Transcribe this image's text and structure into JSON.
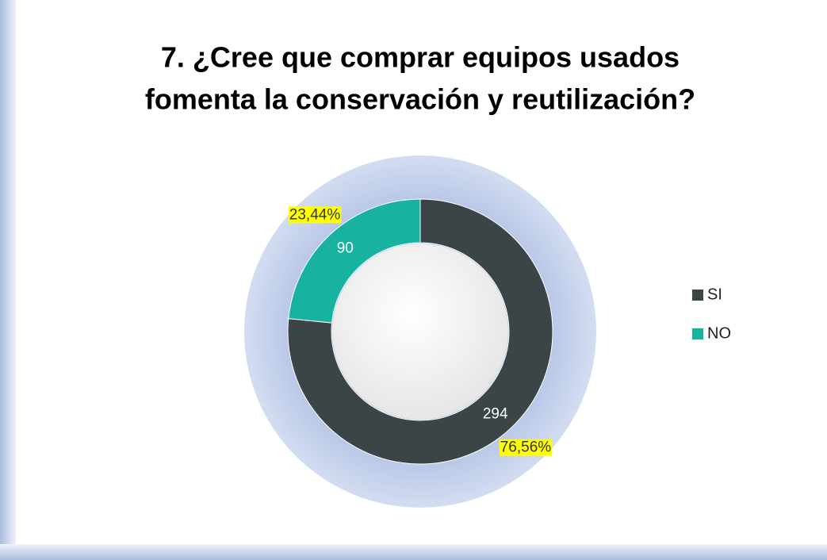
{
  "chart_data": {
    "type": "donut",
    "title": "7. ¿Cree que comprar equipos usados",
    "title_line2": "fomenta la conservación y reutilización?",
    "categories": [
      "SI",
      "NO"
    ],
    "values": [
      294,
      90
    ],
    "value_labels": [
      "76,56%",
      "23,44%"
    ],
    "colors": [
      "#3b4547",
      "#17b3a0"
    ],
    "legend": "right"
  }
}
